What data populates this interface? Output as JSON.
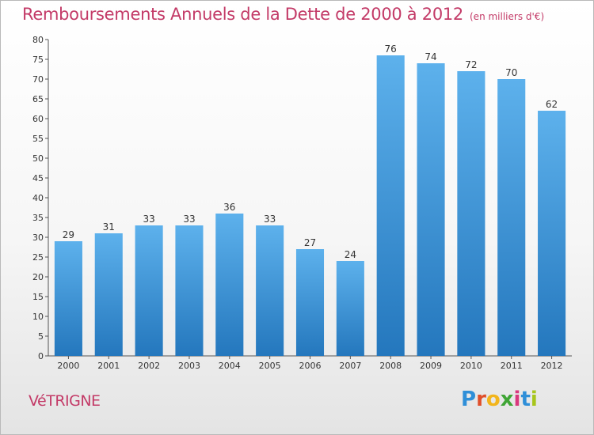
{
  "header": {
    "title": "Remboursements Annuels de la Dette de 2000 à 2012",
    "unit": "(en milliers d'€)"
  },
  "commune": "VéTRIGNE",
  "brand": {
    "letters": [
      "P",
      "r",
      "o",
      "x",
      "i",
      "t",
      "i"
    ],
    "colors": [
      "#2f8fd8",
      "#e04f2a",
      "#f2b51c",
      "#3fa535",
      "#d9387d",
      "#2f8fd8",
      "#a7c51b"
    ]
  },
  "chart_data": {
    "type": "bar",
    "title": "Remboursements Annuels de la Dette de 2000 à 2012",
    "subtitle": "(en milliers d'€)",
    "categories": [
      "2000",
      "2001",
      "2002",
      "2003",
      "2004",
      "2005",
      "2006",
      "2007",
      "2008",
      "2009",
      "2010",
      "2011",
      "2012"
    ],
    "values": [
      29,
      31,
      33,
      33,
      36,
      33,
      27,
      24,
      76,
      74,
      72,
      70,
      62
    ],
    "ylim": [
      0,
      80
    ],
    "ytick_step": 5,
    "grid": false,
    "bar_color": "#4a9fe0",
    "bar_color_dark": "#2477bd",
    "bar_color_light": "#5db1ec"
  }
}
